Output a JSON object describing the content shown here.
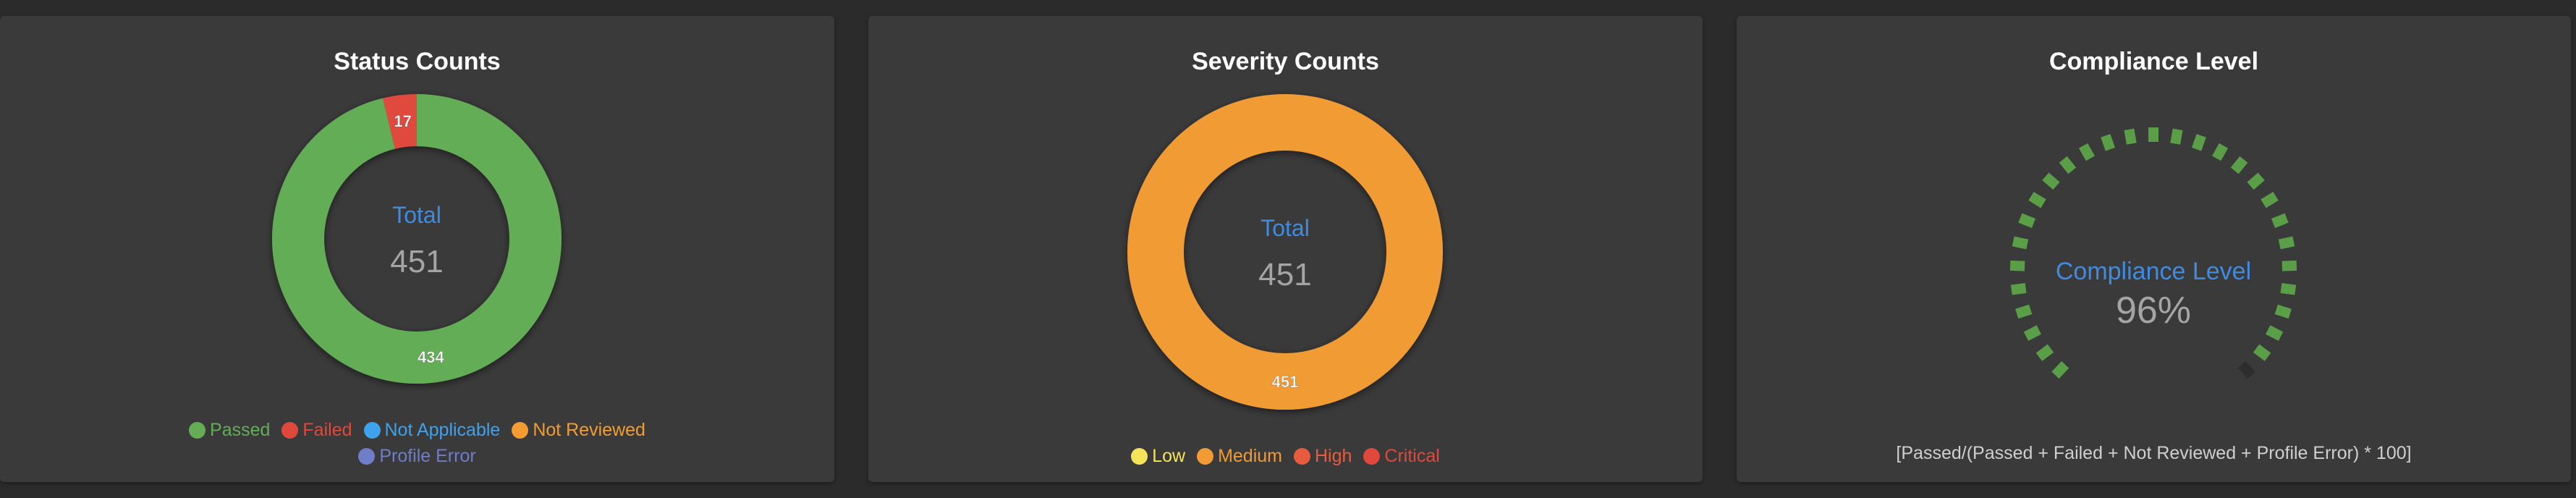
{
  "charts": [
    {
      "id": "status",
      "title": "Status Counts",
      "center_label": "Total",
      "center_value": "451",
      "chart_data": {
        "type": "pie",
        "title": "Status Counts",
        "categories": [
          "Passed",
          "Failed",
          "Not Applicable",
          "Not Reviewed",
          "Profile Error"
        ],
        "values": [
          434,
          17,
          0,
          0,
          0
        ],
        "colors": [
          "#64ad56",
          "#e0483c",
          "#3fa2ec",
          "#f39c32",
          "#6f7ec8"
        ],
        "legend_position": "bottom"
      }
    },
    {
      "id": "severity",
      "title": "Severity Counts",
      "center_label": "Total",
      "center_value": "451",
      "chart_data": {
        "type": "pie",
        "title": "Severity Counts",
        "categories": [
          "Low",
          "Medium",
          "High",
          "Critical"
        ],
        "values": [
          0,
          451,
          0,
          0
        ],
        "colors": [
          "#f5e45a",
          "#f19b34",
          "#e75b3e",
          "#e0483c"
        ],
        "legend_position": "bottom"
      }
    }
  ],
  "compliance": {
    "title": "Compliance Level",
    "label": "Compliance Level",
    "value_text": "96%",
    "value": 96,
    "segments": 29,
    "color": "#5a9e48",
    "formula": "[Passed/(Passed + Failed + Not Reviewed + Profile Error) * 100]"
  },
  "theme": {
    "center_label_color": "#3f8be2",
    "center_value_color": "#a5a5a5"
  }
}
